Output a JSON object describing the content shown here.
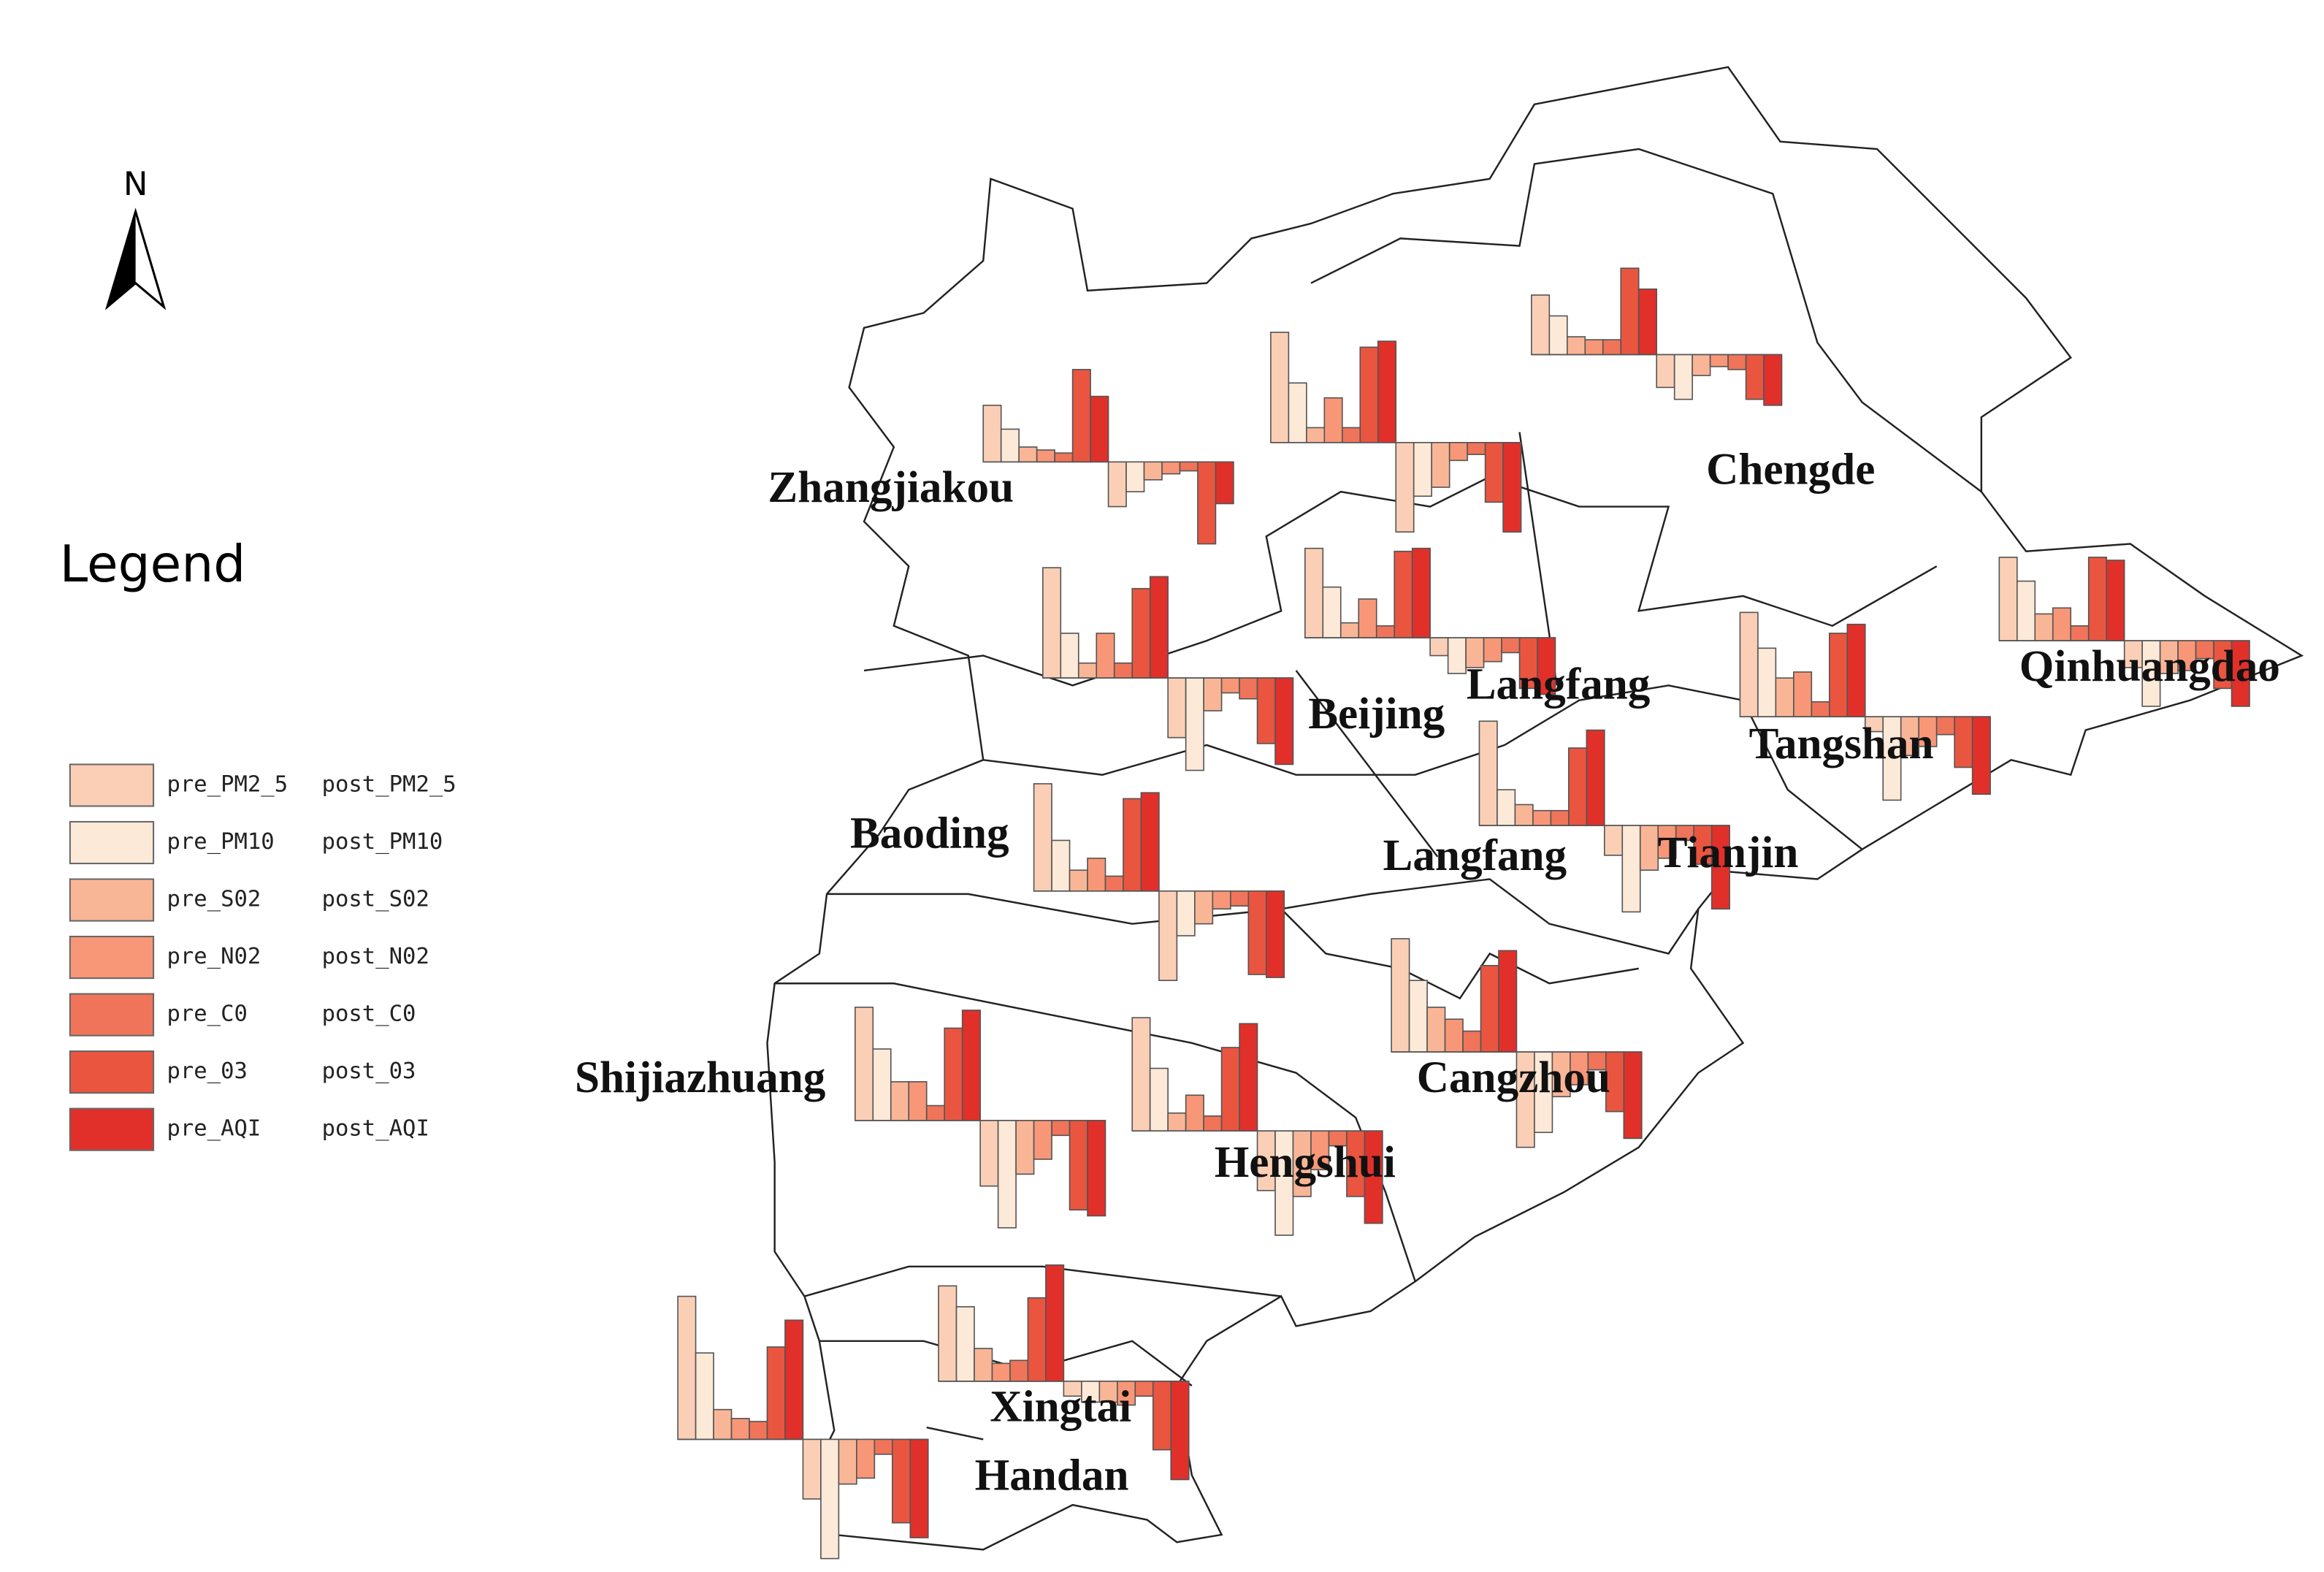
{
  "title": "Legend",
  "north": "N",
  "legend": [
    {
      "pre": "pre_PM2_5",
      "post": "post_PM2_5",
      "color": "#fbcfb6"
    },
    {
      "pre": "pre_PM10",
      "post": "post_PM10",
      "color": "#fde9d8"
    },
    {
      "pre": "pre_S02",
      "post": "post_S02",
      "color": "#f9b697"
    },
    {
      "pre": "pre_N02",
      "post": "post_N02",
      "color": "#f79777"
    },
    {
      "pre": "pre_C0",
      "post": "post_C0",
      "color": "#f07459"
    },
    {
      "pre": "pre_03",
      "post": "post_03",
      "color": "#ea5540"
    },
    {
      "pre": "pre_AQI",
      "post": "post_AQI",
      "color": "#e1302a"
    }
  ],
  "labels": [
    "Zhangjiakou",
    "Chengde",
    "Beijing",
    "Langfang",
    "Tangshan",
    "Qinhuangdao",
    "Baoding",
    "Langfang",
    "Tianjin",
    "Shijiazhuang",
    "Cangzhou",
    "Hengshui",
    "Xingtai",
    "Handan"
  ],
  "charts": [
    {
      "pre": [
        38,
        22,
        10,
        8,
        6,
        62,
        44
      ],
      "post": [
        30,
        20,
        12,
        8,
        6,
        55,
        28
      ]
    },
    {
      "pre": [
        40,
        26,
        12,
        10,
        10,
        58,
        44
      ],
      "post": [
        22,
        30,
        14,
        8,
        10,
        30,
        34
      ]
    },
    {
      "pre": [
        74,
        40,
        10,
        30,
        10,
        64,
        68
      ],
      "post": [
        60,
        36,
        30,
        12,
        8,
        40,
        60
      ]
    },
    {
      "pre": [
        74,
        30,
        10,
        30,
        10,
        60,
        68
      ],
      "post": [
        40,
        62,
        22,
        10,
        14,
        44,
        58
      ]
    },
    {
      "pre": [
        60,
        34,
        10,
        26,
        8,
        58,
        60
      ],
      "post": [
        12,
        24,
        20,
        16,
        10,
        34,
        38
      ]
    },
    {
      "pre": [
        70,
        46,
        26,
        30,
        10,
        56,
        62
      ],
      "post": [
        10,
        56,
        26,
        20,
        12,
        34,
        52
      ]
    },
    {
      "pre": [
        56,
        40,
        18,
        22,
        10,
        56,
        54
      ],
      "post": [
        18,
        44,
        22,
        20,
        12,
        32,
        44
      ]
    },
    {
      "pre": [
        70,
        24,
        14,
        10,
        10,
        52,
        64
      ],
      "post": [
        20,
        58,
        30,
        22,
        10,
        26,
        56
      ]
    },
    {
      "pre": [
        72,
        34,
        14,
        22,
        10,
        62,
        66
      ],
      "post": [
        60,
        30,
        22,
        12,
        10,
        56,
        58
      ]
    },
    {
      "pre": [
        76,
        48,
        26,
        26,
        10,
        62,
        74
      ],
      "post": [
        44,
        72,
        36,
        26,
        10,
        60,
        64
      ]
    },
    {
      "pre": [
        76,
        42,
        12,
        24,
        10,
        56,
        72
      ],
      "post": [
        40,
        70,
        44,
        26,
        10,
        44,
        62
      ]
    },
    {
      "pre": [
        76,
        48,
        30,
        22,
        14,
        58,
        68
      ],
      "post": [
        64,
        54,
        30,
        22,
        12,
        40,
        58
      ]
    },
    {
      "pre": [
        64,
        50,
        22,
        12,
        14,
        56,
        78
      ],
      "post": [
        10,
        14,
        14,
        16,
        10,
        46,
        66
      ]
    },
    {
      "pre": [
        96,
        58,
        20,
        14,
        12,
        62,
        80
      ],
      "post": [
        40,
        80,
        30,
        26,
        10,
        56,
        66
      ]
    }
  ]
}
